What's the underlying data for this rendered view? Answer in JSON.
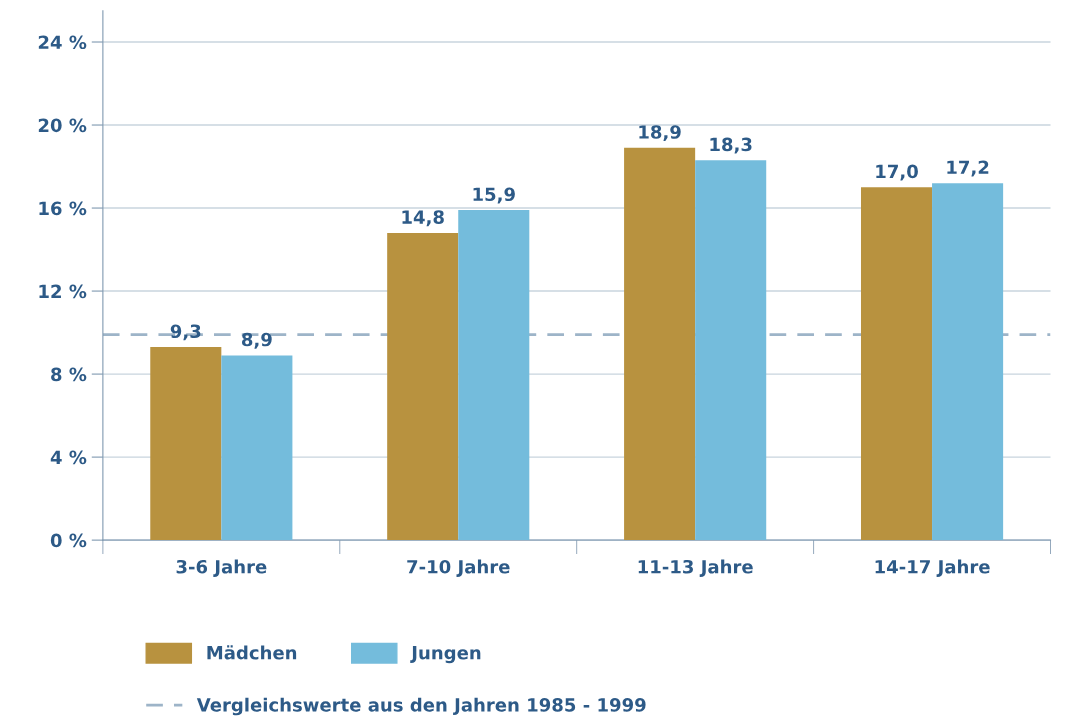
{
  "chart_data": {
    "type": "bar",
    "categories": [
      "3-6 Jahre",
      "7-10 Jahre",
      "11-13 Jahre",
      "14-17 Jahre"
    ],
    "series": [
      {
        "name": "Mädchen",
        "color": "#b8923f",
        "values": [
          9.3,
          14.8,
          18.9,
          17.0
        ],
        "value_labels": [
          "9,3",
          "14,8",
          "18,9",
          "17,0"
        ]
      },
      {
        "name": "Jungen",
        "color": "#74bcdc",
        "values": [
          8.9,
          15.9,
          18.3,
          17.2
        ],
        "value_labels": [
          "8,9",
          "15,9",
          "18,3",
          "17,2"
        ]
      }
    ],
    "ylim": [
      0,
      25.5
    ],
    "yticks": [
      {
        "value": 0,
        "label": "0 %"
      },
      {
        "value": 4,
        "label": "4 %"
      },
      {
        "value": 8,
        "label": "8 %"
      },
      {
        "value": 12,
        "label": "12 %"
      },
      {
        "value": 16,
        "label": "16 %"
      },
      {
        "value": 20,
        "label": "20 %"
      },
      {
        "value": 24,
        "label": "24 %"
      }
    ],
    "grid": "y",
    "legend": "bottom",
    "ref_lines": [
      {
        "axis": "y",
        "value": 9.9,
        "label": "Vergleichswerte aus den Jahren 1985 - 1999",
        "color": "#9db4c8",
        "line_style": "dashed"
      }
    ]
  }
}
